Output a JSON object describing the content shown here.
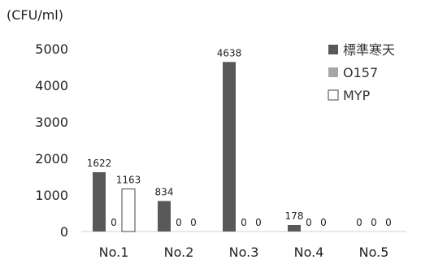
{
  "chart_data": {
    "type": "bar",
    "ylabel": "(CFU/ml)",
    "categories": [
      "No.1",
      "No.2",
      "No.3",
      "No.4",
      "No.5"
    ],
    "series": [
      {
        "name": "標準寒天",
        "values": [
          1622,
          834,
          4638,
          178,
          0
        ],
        "color": "#595959",
        "fill": "solid"
      },
      {
        "name": "O157",
        "values": [
          0,
          0,
          0,
          0,
          0
        ],
        "color": "#a6a6a6",
        "fill": "solid"
      },
      {
        "name": "MYP",
        "values": [
          1163,
          0,
          0,
          0,
          0
        ],
        "color": "#ffffff",
        "stroke": "#444444",
        "fill": "outline"
      }
    ],
    "yticks": [
      0,
      1000,
      2000,
      3000,
      4000,
      5000
    ],
    "ylim": [
      0,
      5000
    ],
    "grid": false,
    "legend": "top-right"
  }
}
